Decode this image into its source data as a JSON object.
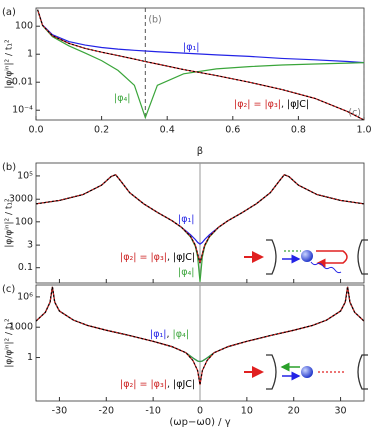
{
  "chart_data": [
    {
      "type": "line",
      "panel_label": "(a)",
      "xlabel": "β",
      "ylabel": "|φ/φⁱⁿ|² / t₁²",
      "yscale": "log",
      "xlim": [
        0,
        1
      ],
      "ylim": [
        2e-05,
        2000
      ],
      "xticks": [
        {
          "value": 0,
          "label": "0.0"
        },
        0.2,
        0.4,
        0.6,
        0.8,
        {
          "value": 1,
          "label": "1.0"
        }
      ],
      "yticks": [
        100,
        1,
        0.01,
        {
          "value": 0.0001,
          "label": "10⁻⁴"
        }
      ],
      "markers": [
        {
          "x": 0.3333,
          "label": "(b)"
        },
        {
          "x": 1,
          "label": "(c)"
        }
      ],
      "separator": ",",
      "x": [
        0.005,
        0.02,
        0.05,
        0.1,
        0.15,
        0.2,
        0.25,
        0.3,
        0.3333,
        0.37,
        0.45,
        0.55,
        0.65,
        0.75,
        0.85,
        0.95,
        1.0
      ],
      "series": [
        {
          "name": "|φ₁|",
          "color": "#2323e6",
          "values": [
            1500,
            120,
            25,
            8,
            4.5,
            3,
            2.3,
            1.9,
            1.7,
            1.5,
            1.2,
            0.9,
            0.7,
            0.5,
            0.4,
            0.3,
            0.25
          ]
        },
        {
          "name": "|φ₄|",
          "color": "#3aa53a",
          "values": [
            1500,
            110,
            18,
            4,
            1.2,
            0.35,
            0.07,
            0.006,
            3e-05,
            0.006,
            0.04,
            0.09,
            0.13,
            0.17,
            0.2,
            0.23,
            0.25
          ]
        },
        {
          "name": "|φ₂| = |φ₃|",
          "color": "#cc1f1f",
          "values": [
            1500,
            115,
            21,
            6,
            2.6,
            1.4,
            0.8,
            0.45,
            0.3,
            0.2,
            0.08,
            0.03,
            0.01,
            0.003,
            0.0007,
            8e-05,
            2e-05
          ]
        },
        {
          "name": "|φJC|",
          "color": "#000000",
          "dashed": true,
          "values": [
            1500,
            115,
            21,
            6,
            2.6,
            1.4,
            0.8,
            0.45,
            0.3,
            0.2,
            0.08,
            0.03,
            0.01,
            0.003,
            0.0007,
            8e-05,
            2e-05
          ]
        }
      ],
      "label_groups": [
        [
          0
        ],
        [
          1
        ],
        [
          2,
          3
        ]
      ]
    },
    {
      "type": "line",
      "panel_label": "(b)",
      "ylabel": "|φ/φⁱⁿ|² / t₁²",
      "yscale": "log",
      "xlim": [
        -35,
        35
      ],
      "ylim": [
        0.01,
        700000
      ],
      "show_xtick_labels": false,
      "xticks": [
        -30,
        -20,
        -10,
        0,
        10,
        20,
        30
      ],
      "yticks": [
        {
          "value": 100000,
          "label": "10⁵"
        },
        3000,
        100,
        3,
        0.1
      ],
      "vline": 0,
      "separator": ",",
      "x": [
        -35,
        -30,
        -25,
        -21,
        -19,
        -18,
        -17,
        -15,
        -12,
        -9,
        -6,
        -4,
        -2,
        -1,
        -0.5,
        0,
        0.5,
        1,
        2,
        4,
        6,
        9,
        12,
        15,
        17,
        18,
        19,
        21,
        25,
        30,
        35
      ],
      "series": [
        {
          "name": "|φ₁|",
          "color": "#2323e6",
          "values": [
            1500,
            2500,
            6000,
            25000,
            90000,
            120000,
            50000,
            8000,
            1500,
            400,
            120,
            45,
            14,
            7,
            4.5,
            3.5,
            4.5,
            7,
            14,
            45,
            120,
            400,
            1500,
            8000,
            50000,
            120000,
            90000,
            25000,
            6000,
            2500,
            1500
          ]
        },
        {
          "name": "|φ₄|",
          "color": "#3aa53a",
          "values": [
            1500,
            2500,
            6000,
            25000,
            90000,
            120000,
            50000,
            8000,
            1500,
            400,
            120,
            45,
            10,
            2.5,
            0.5,
            0.012,
            0.5,
            2.5,
            10,
            45,
            120,
            400,
            1500,
            8000,
            50000,
            120000,
            90000,
            25000,
            6000,
            2500,
            1500
          ]
        },
        {
          "name": "|φ₂| = |φ₃|",
          "color": "#cc1f1f",
          "values": [
            1500,
            2500,
            6000,
            25000,
            90000,
            120000,
            50000,
            8000,
            1500,
            400,
            120,
            45,
            11,
            3,
            0.8,
            0.2,
            0.8,
            3,
            11,
            45,
            120,
            400,
            1500,
            8000,
            50000,
            120000,
            90000,
            25000,
            6000,
            2500,
            1500
          ]
        },
        {
          "name": "|φJC|",
          "color": "#000000",
          "dashed": true,
          "values": [
            1500,
            2500,
            6000,
            25000,
            90000,
            120000,
            50000,
            8000,
            1500,
            400,
            120,
            45,
            11,
            3,
            0.8,
            0.2,
            0.8,
            3,
            11,
            45,
            120,
            400,
            1500,
            8000,
            50000,
            120000,
            90000,
            25000,
            6000,
            2500,
            1500
          ]
        }
      ],
      "label_groups": [
        [
          0
        ],
        [
          2,
          3
        ],
        [
          1
        ]
      ]
    },
    {
      "type": "line",
      "panel_label": "(c)",
      "xlabel": "(ωp−ω0) / γ",
      "ylabel": "|φ/φⁱⁿ|² / t₁²",
      "yscale": "log",
      "xlim": [
        -35,
        35
      ],
      "ylim": [
        5e-05,
        15000000
      ],
      "xticks": [
        -30,
        -20,
        -10,
        0,
        10,
        20,
        30
      ],
      "yticks": [
        {
          "value": 1000000,
          "label": "10⁶"
        },
        1000,
        1
      ],
      "vline": 0,
      "separator": ",",
      "x": [
        -35,
        -33,
        -32,
        -31.5,
        -31,
        -30,
        -27,
        -24,
        -20,
        -15,
        -10,
        -6,
        -3,
        -1.5,
        -0.5,
        0,
        0.5,
        1.5,
        3,
        6,
        10,
        15,
        20,
        24,
        27,
        30,
        31,
        31.5,
        32,
        33,
        35
      ],
      "series": [
        {
          "name": "|φ₁|",
          "color": "#2323e6",
          "values": [
            4000,
            30000,
            300000,
            10000000,
            300000,
            40000,
            5000,
            1500,
            500,
            150,
            40,
            12,
            3,
            0.9,
            0.45,
            0.4,
            0.45,
            0.9,
            3,
            12,
            40,
            150,
            500,
            1500,
            5000,
            40000,
            300000,
            10000000,
            300000,
            30000,
            4000
          ]
        },
        {
          "name": "|φ₄|",
          "color": "#3aa53a",
          "values": [
            4000,
            30000,
            300000,
            10000000,
            300000,
            40000,
            5000,
            1500,
            500,
            150,
            40,
            12,
            3,
            0.9,
            0.45,
            0.4,
            0.45,
            0.9,
            3,
            12,
            40,
            150,
            500,
            1500,
            5000,
            40000,
            300000,
            10000000,
            300000,
            30000,
            4000
          ]
        },
        {
          "name": "|φ₂| = |φ₃|",
          "color": "#cc1f1f",
          "values": [
            4000,
            30000,
            300000,
            10000000,
            300000,
            40000,
            5000,
            1500,
            500,
            150,
            40,
            12,
            3,
            0.5,
            0.05,
            0.002,
            0.05,
            0.5,
            3,
            12,
            40,
            150,
            500,
            1500,
            5000,
            40000,
            300000,
            10000000,
            300000,
            30000,
            4000
          ]
        },
        {
          "name": "|φJC|",
          "color": "#000000",
          "dashed": true,
          "values": [
            4000,
            30000,
            300000,
            10000000,
            300000,
            40000,
            5000,
            1500,
            500,
            150,
            40,
            12,
            3,
            0.5,
            0.05,
            0.002,
            0.05,
            0.5,
            3,
            12,
            40,
            150,
            500,
            1500,
            5000,
            40000,
            300000,
            10000000,
            300000,
            30000,
            4000
          ]
        }
      ],
      "label_groups": [
        [
          0,
          1
        ],
        [
          2,
          3
        ]
      ]
    }
  ]
}
